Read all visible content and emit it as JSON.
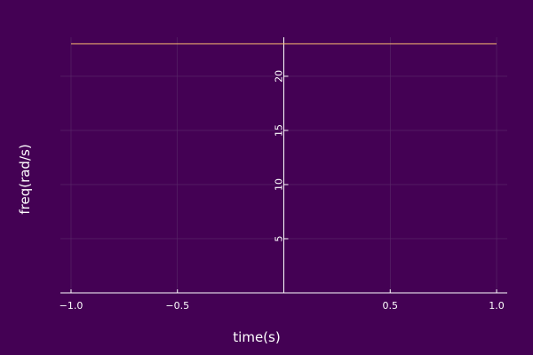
{
  "chart_data": {
    "type": "line",
    "xlabel": "time(s)",
    "ylabel": "freq(rad/s)",
    "xlim": [
      -1.05,
      1.05
    ],
    "ylim": [
      0,
      23.6
    ],
    "x_ticks": [
      -1.0,
      -0.5,
      0.5,
      1.0
    ],
    "x_tick_labels": [
      "−1.0",
      "−0.5",
      "0.5",
      "1.0"
    ],
    "y_ticks": [
      5,
      10,
      15,
      20
    ],
    "y_tick_labels": [
      "5",
      "10",
      "15",
      "20"
    ],
    "grid": true,
    "legend": "none",
    "series": [
      {
        "x": [
          -1.0,
          1.0
        ],
        "y": [
          23.0,
          23.0
        ],
        "color": "#fdbf6f"
      }
    ]
  },
  "colors": {
    "background": "#440154",
    "axis": "#ffffff",
    "grid": "#5a2a6a"
  }
}
